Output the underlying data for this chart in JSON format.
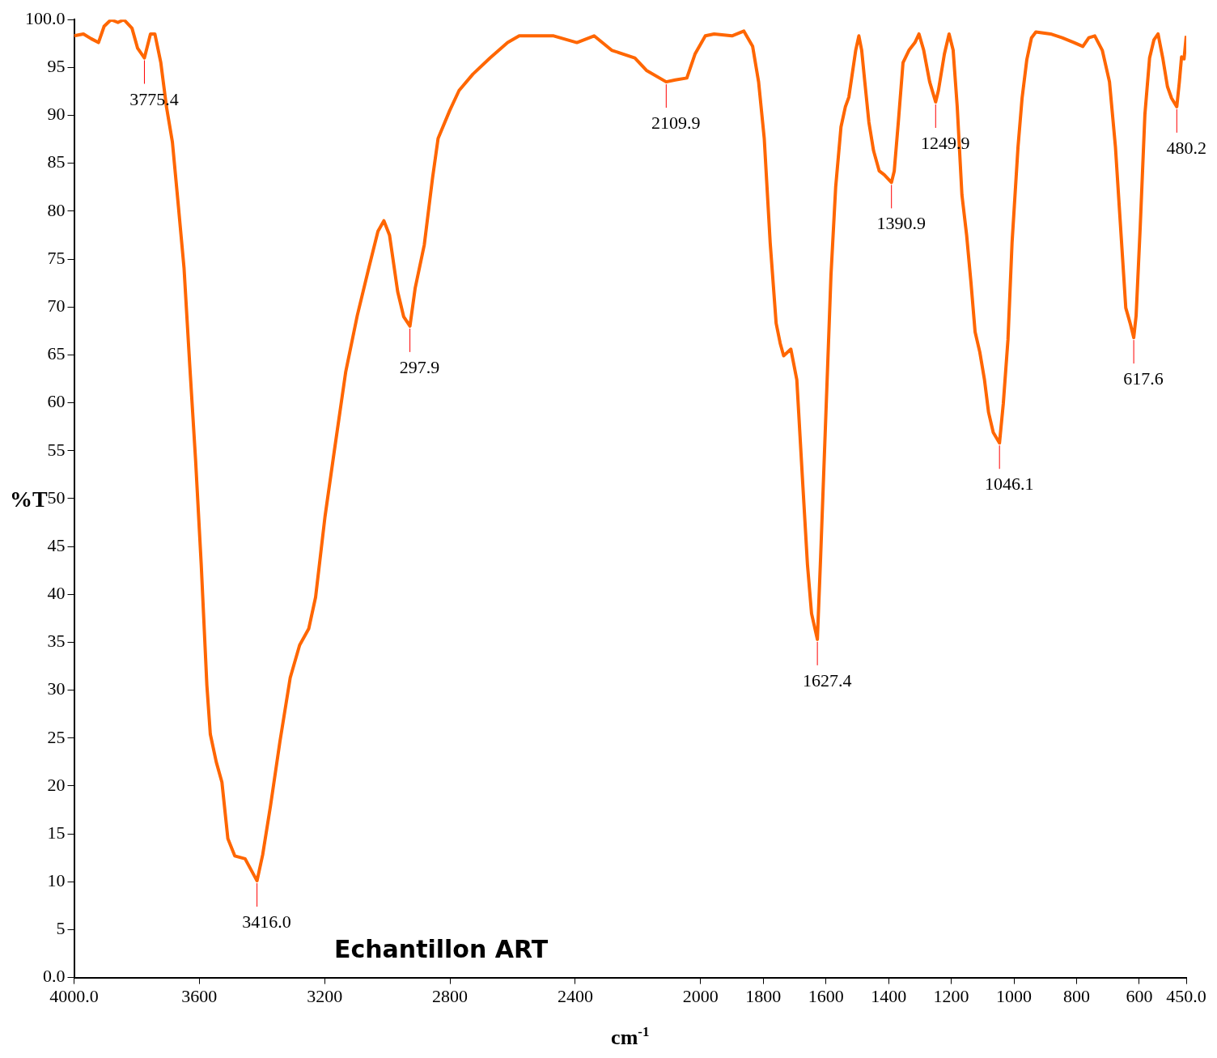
{
  "chart_data": {
    "type": "line",
    "xlabel": "cm$^{-1}$",
    "ylabel": "%T",
    "xlim": [
      4000,
      450
    ],
    "ylim": [
      0,
      100
    ],
    "xticks": [
      {
        "value": 4000,
        "label": "4000.0"
      },
      3600,
      3200,
      2800,
      2400,
      2000,
      1800,
      1600,
      1400,
      1200,
      1000,
      800,
      600,
      {
        "value": 450,
        "label": "450.0"
      }
    ],
    "yticks": [
      {
        "value": 0,
        "label": "0.0"
      },
      5,
      10,
      15,
      20,
      25,
      30,
      35,
      40,
      45,
      50,
      55,
      60,
      65,
      70,
      75,
      80,
      85,
      90,
      95,
      {
        "value": 100,
        "label": "100.0"
      }
    ],
    "grid": false,
    "legend": false,
    "series": [
      {
        "color": "#ff6600",
        "x": [
          4000,
          3970,
          3945,
          3922,
          3904,
          3882,
          3860,
          3841,
          3815,
          3797,
          3775.4,
          3756,
          3742,
          3723,
          3705,
          3686,
          3668,
          3649,
          3631,
          3612,
          3594,
          3576,
          3565,
          3546,
          3528,
          3509,
          3487,
          3454,
          3416,
          3398,
          3373,
          3343,
          3310,
          3280,
          3251,
          3229,
          3199,
          3170,
          3133,
          3096,
          3059,
          3030,
          3011,
          2993,
          2967,
          2948,
          2927.9,
          2911,
          2882,
          2856,
          2838,
          2801,
          2771,
          2727,
          2672,
          2616,
          2579,
          2469,
          2395,
          2340,
          2284,
          2210,
          2173,
          2109.9,
          2081,
          2044,
          2018,
          1985,
          1957,
          1900,
          1862,
          1834,
          1815,
          1797,
          1778,
          1759,
          1746,
          1735,
          1712,
          1693,
          1674,
          1659,
          1646,
          1627.4,
          1617,
          1599,
          1584,
          1569,
          1552,
          1538,
          1527,
          1518,
          1505,
          1495,
          1486,
          1476,
          1463,
          1448,
          1430,
          1414,
          1390.9,
          1382,
          1369,
          1354,
          1335,
          1316,
          1303,
          1288,
          1269,
          1249.9,
          1241,
          1222,
          1207,
          1194,
          1181,
          1166,
          1151,
          1137,
          1124,
          1109,
          1094,
          1081,
          1066,
          1046.1,
          1034,
          1019,
          1006,
          987,
          974,
          959,
          944,
          930,
          883,
          846,
          808,
          780,
          761,
          742,
          718,
          695,
          676,
          658,
          643,
          629,
          617.6,
          610,
          597,
          582,
          567,
          553,
          540,
          525,
          510,
          497,
          480.2,
          472,
          465,
          457,
          450
        ],
        "values": [
          98.3,
          98.5,
          98.0,
          97.6,
          99.3,
          100.0,
          99.7,
          100.0,
          99.1,
          97.0,
          96.0,
          98.5,
          98.5,
          95.5,
          90.9,
          87.2,
          80.9,
          74.1,
          64.1,
          54.0,
          43.1,
          30.5,
          25.4,
          22.5,
          20.4,
          14.5,
          12.7,
          12.4,
          10.1,
          12.8,
          17.9,
          24.6,
          31.3,
          34.7,
          36.4,
          39.7,
          48.1,
          54.8,
          63.2,
          69.1,
          74.1,
          77.9,
          79.0,
          77.5,
          71.6,
          69.0,
          68.0,
          72.0,
          76.5,
          83.4,
          87.6,
          90.5,
          92.6,
          94.3,
          96.0,
          97.6,
          98.3,
          98.3,
          97.6,
          98.3,
          96.8,
          96.0,
          94.7,
          93.5,
          93.7,
          93.9,
          96.4,
          98.3,
          98.5,
          98.3,
          98.8,
          97.2,
          93.5,
          87.6,
          76.7,
          68.3,
          66.2,
          64.9,
          65.6,
          62.4,
          51.5,
          43.1,
          38.0,
          35.3,
          43.9,
          59.9,
          73.3,
          82.5,
          88.8,
          90.9,
          91.9,
          93.9,
          96.8,
          98.3,
          96.8,
          93.5,
          89.3,
          86.3,
          84.2,
          83.8,
          83.0,
          84.2,
          89.3,
          95.5,
          96.8,
          97.6,
          98.5,
          96.8,
          93.5,
          91.4,
          92.6,
          96.4,
          98.5,
          96.8,
          90.9,
          81.7,
          77.5,
          72.5,
          67.4,
          65.3,
          62.4,
          59.0,
          56.9,
          55.8,
          59.9,
          66.6,
          76.7,
          86.7,
          91.8,
          95.8,
          98.1,
          98.7,
          98.5,
          98.1,
          97.6,
          97.2,
          98.1,
          98.3,
          96.8,
          93.5,
          86.7,
          77.5,
          69.9,
          68.3,
          66.8,
          69.1,
          78.3,
          90.1,
          96.0,
          97.9,
          98.5,
          96.0,
          93.0,
          91.8,
          90.9,
          93.5,
          96.1,
          95.9,
          98.3
        ]
      }
    ],
    "annotations": [
      {
        "text": "3775.4",
        "x": 3775.4,
        "y": 96.0
      },
      {
        "text": "3416.0",
        "x": 3416,
        "y": 10.1
      },
      {
        "text": "297.9",
        "x": 2927.9,
        "y": 68.0
      },
      {
        "text": "2109.9",
        "x": 2109.9,
        "y": 93.5
      },
      {
        "text": "1627.4",
        "x": 1627.4,
        "y": 35.3
      },
      {
        "text": "1390.9",
        "x": 1390.9,
        "y": 83.0
      },
      {
        "text": "1249.9",
        "x": 1249.9,
        "y": 91.4
      },
      {
        "text": "1046.1",
        "x": 1046.1,
        "y": 55.8
      },
      {
        "text": "617.6",
        "x": 617.6,
        "y": 66.8
      },
      {
        "text": "480.2",
        "x": 480.2,
        "y": 90.9
      },
      "Echantillon ART"
    ]
  }
}
